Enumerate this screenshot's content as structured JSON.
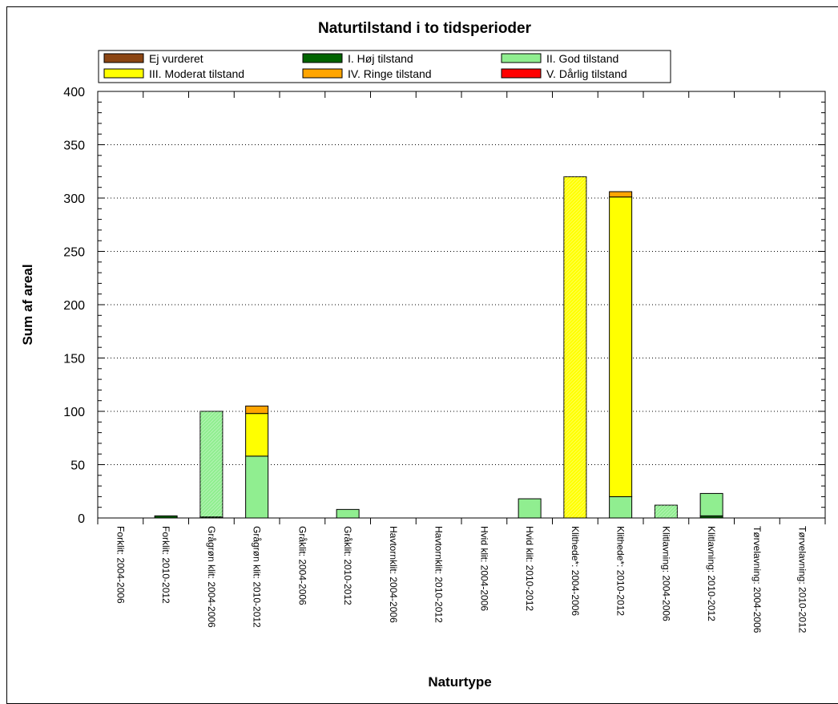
{
  "chart_data": {
    "type": "bar",
    "stacked": true,
    "title": "Naturtilstand i to tidsperioder",
    "xlabel": "Naturtype",
    "ylabel": "Sum af areal",
    "ylim": [
      0,
      400
    ],
    "yticks": [
      0,
      50,
      100,
      150,
      200,
      250,
      300,
      350,
      400
    ],
    "grid": "horizontal-dotted",
    "legend_position": "top",
    "categories": [
      "Forklit: 2004-2006",
      "Forklit: 2010-2012",
      "Grågrøn klit: 2004-2006",
      "Grågrøn klit: 2010-2012",
      "Gråklit: 2004-2006",
      "Gråklit: 2010-2012",
      "Havtornklit: 2004-2006",
      "Havtornklit: 2010-2012",
      "Hvid klit: 2004-2006",
      "Hvid klit: 2010-2012",
      "Klithede*: 2004-2006",
      "Klithede*: 2010-2012",
      "Klitlavning: 2004-2006",
      "Klitlavning: 2010-2012",
      "Tørvelavning: 2004-2006",
      "Tørvelavning: 2010-2012"
    ],
    "series": [
      {
        "name": "Ej vurderet",
        "color": "#8b4513",
        "values": [
          0,
          0,
          0,
          0,
          0,
          0,
          0,
          0,
          0,
          0,
          0,
          0,
          0,
          0,
          0,
          0
        ]
      },
      {
        "name": "I. Høj tilstand",
        "color": "#006400",
        "values": [
          0,
          2,
          1,
          0,
          0,
          0,
          0,
          0,
          0,
          0,
          0,
          0,
          0,
          2,
          0,
          0
        ]
      },
      {
        "name": "II. God tilstand",
        "color": "#90ee90",
        "values": [
          0,
          0,
          99,
          58,
          0,
          8,
          0,
          0,
          0,
          18,
          0,
          20,
          12,
          21,
          0,
          0
        ]
      },
      {
        "name": "III. Moderat tilstand",
        "color": "#ffff00",
        "values": [
          0,
          0,
          0,
          40,
          0,
          0,
          0,
          0,
          0,
          0,
          320,
          281,
          0,
          0,
          0,
          0
        ]
      },
      {
        "name": "IV. Ringe tilstand",
        "color": "#ffa500",
        "values": [
          0,
          0,
          0,
          7,
          0,
          0,
          0,
          0,
          0,
          0,
          0,
          5,
          0,
          0,
          0,
          0
        ]
      },
      {
        "name": "V. Dårlig tilstand",
        "color": "#ff0000",
        "values": [
          0,
          0,
          0,
          0,
          0,
          0,
          0,
          0,
          0,
          0,
          0,
          0,
          0,
          0,
          0,
          0
        ]
      }
    ],
    "hatched_categories": [
      "Grågrøn klit: 2004-2006",
      "Klithede*: 2004-2006",
      "Klitlavning: 2004-2006"
    ]
  }
}
